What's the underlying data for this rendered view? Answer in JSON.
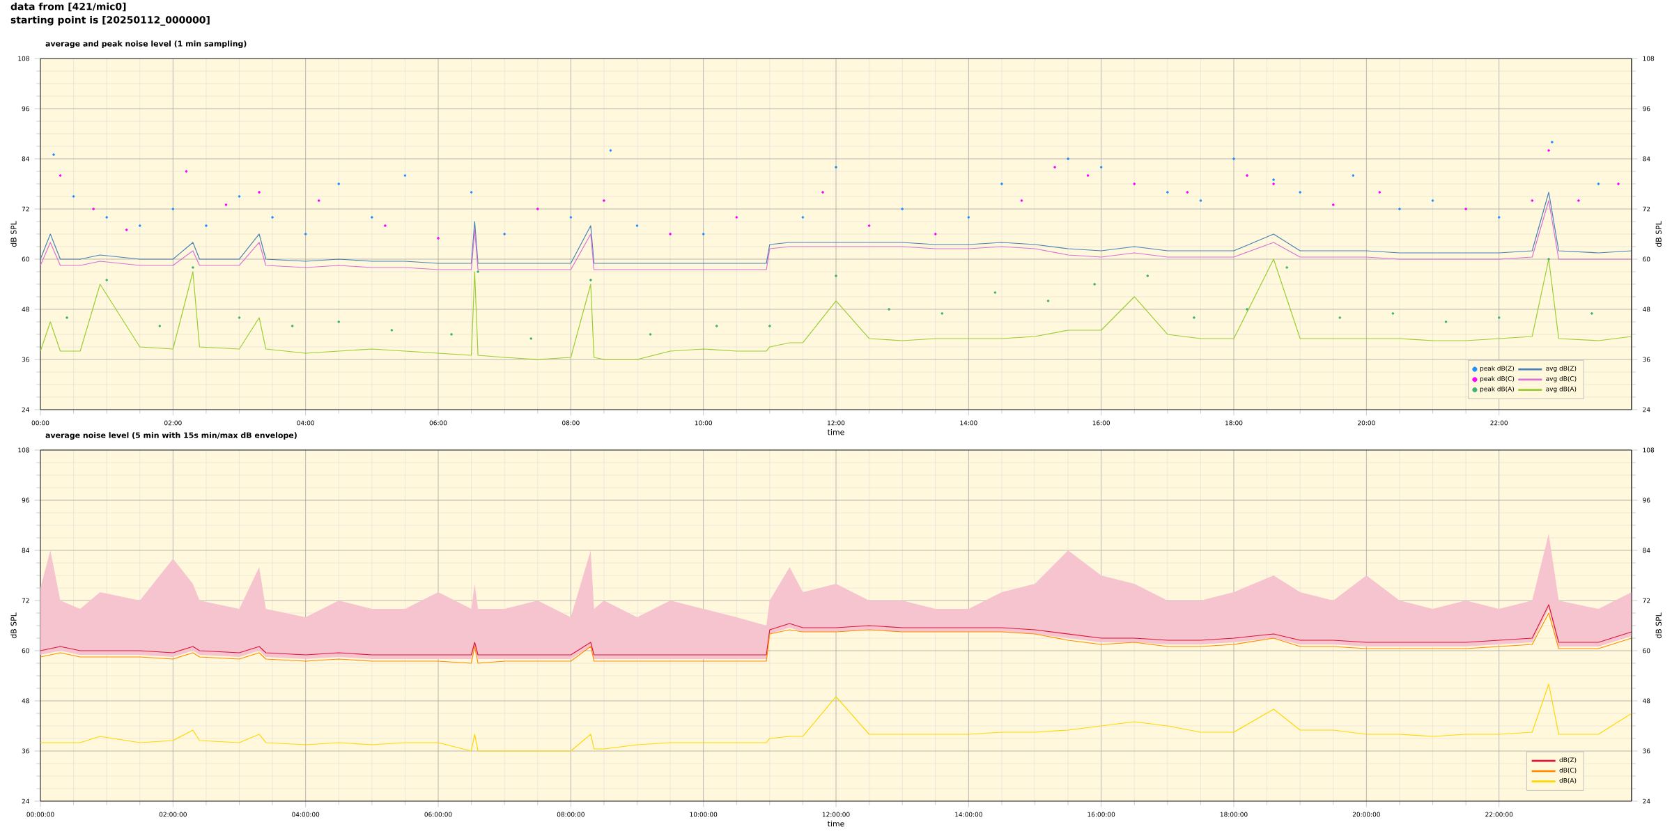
{
  "chart_data": [
    {
      "type": "line",
      "title": "average and peak noise level (1 min sampling)",
      "annotations": [
        "data from [421/mic0]",
        "starting point is [20250112_000000]"
      ],
      "xlabel": "time",
      "ylabel": "dB SPL",
      "y2label": "dB SPL",
      "xlim": [
        0,
        24
      ],
      "xticks": [
        {
          "value": 0,
          "label": "00:00"
        },
        {
          "value": 2,
          "label": "02:00"
        },
        {
          "value": 4,
          "label": "04:00"
        },
        {
          "value": 6,
          "label": "06:00"
        },
        {
          "value": 8,
          "label": "08:00"
        },
        {
          "value": 10,
          "label": "10:00"
        },
        {
          "value": 12,
          "label": "12:00"
        },
        {
          "value": 14,
          "label": "14:00"
        },
        {
          "value": 16,
          "label": "16:00"
        },
        {
          "value": 18,
          "label": "18:00"
        },
        {
          "value": 20,
          "label": "20:00"
        },
        {
          "value": 22,
          "label": "22:00"
        }
      ],
      "ylim": [
        24,
        108
      ],
      "yticks": [
        24,
        36,
        48,
        60,
        72,
        84,
        96,
        108
      ],
      "y2lim": [
        24,
        108
      ],
      "y2ticks": [
        24,
        36,
        48,
        60,
        72,
        84,
        96,
        108
      ],
      "grid": true,
      "legend": "bottom right",
      "x": [
        0,
        0.15,
        0.3,
        0.6,
        0.9,
        1.5,
        2.0,
        2.3,
        2.4,
        3.0,
        3.3,
        3.4,
        4.0,
        4.5,
        5.0,
        5.5,
        6.0,
        6.5,
        6.55,
        6.6,
        7.0,
        7.5,
        8.0,
        8.3,
        8.35,
        8.5,
        9.0,
        9.5,
        10.0,
        10.5,
        10.95,
        11.0,
        11.3,
        11.5,
        12.0,
        12.5,
        13.0,
        13.5,
        14.0,
        14.5,
        15.0,
        15.5,
        16.0,
        16.5,
        17.0,
        17.5,
        18.0,
        18.6,
        19.0,
        19.5,
        20.0,
        20.5,
        21.0,
        21.5,
        22.0,
        22.5,
        22.75,
        22.9,
        23.5,
        24
      ],
      "series": [
        {
          "name": "peak dB(Z)",
          "type": "scatter",
          "color": "#1e90ff",
          "x": [
            0.2,
            0.5,
            1,
            1.5,
            2,
            2.5,
            3,
            3.5,
            4,
            4.5,
            5,
            5.5,
            6.5,
            7,
            8,
            8.6,
            9,
            10,
            11.5,
            12,
            13,
            14,
            14.5,
            15.5,
            16,
            17,
            17.5,
            18,
            18.6,
            19,
            19.8,
            20.5,
            21,
            22,
            22.8,
            23.5
          ],
          "values": [
            85,
            75,
            70,
            68,
            72,
            68,
            75,
            70,
            66,
            78,
            70,
            80,
            76,
            66,
            70,
            86,
            68,
            66,
            70,
            82,
            72,
            70,
            78,
            84,
            82,
            76,
            74,
            84,
            79,
            76,
            80,
            72,
            74,
            70,
            88,
            78
          ]
        },
        {
          "name": "peak dB(C)",
          "type": "scatter",
          "color": "#ff00ff",
          "x": [
            0.3,
            0.8,
            1.3,
            2.2,
            2.8,
            3.3,
            4.2,
            5.2,
            6,
            7.5,
            8.5,
            9.5,
            10.5,
            11.8,
            12.5,
            13.5,
            14.8,
            15.3,
            15.8,
            16.5,
            17.3,
            18.2,
            18.6,
            19.5,
            20.2,
            21.5,
            22.5,
            22.75,
            23.2,
            23.8
          ],
          "values": [
            80,
            72,
            67,
            81,
            73,
            76,
            74,
            68,
            65,
            72,
            74,
            66,
            70,
            76,
            68,
            66,
            74,
            82,
            80,
            78,
            76,
            80,
            78,
            73,
            76,
            72,
            74,
            86,
            74,
            78
          ]
        },
        {
          "name": "peak dB(A)",
          "type": "scatter",
          "color": "#3cb371",
          "x": [
            0.4,
            1,
            1.8,
            2.3,
            3,
            3.8,
            4.5,
            5.3,
            6.2,
            6.6,
            7.4,
            8.3,
            9.2,
            10.2,
            11,
            12,
            12.8,
            13.6,
            14.4,
            15.2,
            15.9,
            16.7,
            17.4,
            18.2,
            18.8,
            19.6,
            20.4,
            21.2,
            22,
            22.75,
            23.4
          ],
          "values": [
            46,
            55,
            44,
            58,
            46,
            44,
            45,
            43,
            42,
            57,
            41,
            55,
            42,
            44,
            44,
            56,
            48,
            47,
            52,
            50,
            54,
            56,
            46,
            48,
            58,
            46,
            47,
            45,
            46,
            60,
            47
          ]
        },
        {
          "name": "avg dB(Z)",
          "color": "#4682b4",
          "values": [
            60,
            66,
            60,
            60,
            61,
            60,
            60,
            64,
            60,
            60,
            66,
            60,
            59.5,
            60,
            59.5,
            59.5,
            59,
            59,
            69,
            59,
            59,
            59,
            59,
            68,
            59,
            59,
            59,
            59,
            59,
            59,
            59,
            63.5,
            64,
            64,
            64,
            64,
            64,
            63.5,
            63.5,
            64,
            63.5,
            62.5,
            62,
            63,
            62,
            62,
            62,
            66,
            62,
            62,
            62,
            61.5,
            61.5,
            61.5,
            61.5,
            62,
            76,
            62,
            61.5,
            62
          ]
        },
        {
          "name": "avg dB(C)",
          "color": "#da70d6",
          "values": [
            58.5,
            64,
            58.5,
            58.5,
            59.5,
            58.5,
            58.5,
            62,
            58.5,
            58.5,
            64,
            58.5,
            58,
            58.5,
            58,
            58,
            57.5,
            57.5,
            67,
            57.5,
            57.5,
            57.5,
            57.5,
            66,
            57.5,
            57.5,
            57.5,
            57.5,
            57.5,
            57.5,
            57.5,
            62.5,
            63,
            63,
            63,
            63,
            63,
            62.5,
            62.5,
            63,
            62.5,
            61,
            60.5,
            61.5,
            60.5,
            60.5,
            60.5,
            64,
            60.5,
            60.5,
            60.5,
            60,
            60,
            60,
            60,
            60.5,
            74,
            60,
            60,
            60
          ]
        },
        {
          "name": "avg dB(A)",
          "color": "#9acd32",
          "values": [
            38,
            45,
            38,
            38,
            54,
            39,
            38.5,
            57,
            39,
            38.5,
            46,
            38.5,
            37.5,
            38,
            38.5,
            38,
            37.5,
            37,
            57,
            37,
            36.5,
            36,
            36.5,
            54,
            36.5,
            36,
            36,
            38,
            38.5,
            38,
            38,
            39,
            40,
            40,
            50,
            41,
            40.5,
            41,
            41,
            41,
            41.5,
            43,
            43,
            51,
            42,
            41,
            41,
            60,
            41,
            41,
            41,
            41,
            40.5,
            40.5,
            41,
            41.5,
            60,
            41,
            40.5,
            41.5
          ]
        }
      ]
    },
    {
      "type": "line",
      "title": "average noise level (5 min with 15s min/max dB envelope)",
      "xlabel": "time",
      "ylabel": "dB SPL",
      "y2label": "dB SPL",
      "xlim": [
        0,
        24
      ],
      "xticks": [
        {
          "value": 0,
          "label": "00:00:00"
        },
        {
          "value": 2,
          "label": "02:00:00"
        },
        {
          "value": 4,
          "label": "04:00:00"
        },
        {
          "value": 6,
          "label": "06:00:00"
        },
        {
          "value": 8,
          "label": "08:00:00"
        },
        {
          "value": 10,
          "label": "10:00:00"
        },
        {
          "value": 12,
          "label": "12:00:00"
        },
        {
          "value": 14,
          "label": "14:00:00"
        },
        {
          "value": 16,
          "label": "16:00:00"
        },
        {
          "value": 18,
          "label": "18:00:00"
        },
        {
          "value": 20,
          "label": "20:00:00"
        },
        {
          "value": 22,
          "label": "22:00:00"
        }
      ],
      "ylim": [
        24,
        108
      ],
      "yticks": [
        24,
        36,
        48,
        60,
        72,
        84,
        96,
        108
      ],
      "y2lim": [
        24,
        108
      ],
      "y2ticks": [
        24,
        36,
        48,
        60,
        72,
        84,
        96,
        108
      ],
      "grid": true,
      "legend": "bottom right",
      "x": [
        0,
        0.15,
        0.3,
        0.6,
        0.9,
        1.5,
        2.0,
        2.3,
        2.4,
        3.0,
        3.3,
        3.4,
        4.0,
        4.5,
        5.0,
        5.5,
        6.0,
        6.5,
        6.55,
        6.6,
        7.0,
        7.5,
        8.0,
        8.3,
        8.35,
        8.5,
        9.0,
        9.5,
        10.0,
        10.5,
        10.95,
        11.0,
        11.3,
        11.5,
        12.0,
        12.5,
        13.0,
        13.5,
        14.0,
        14.5,
        15.0,
        15.5,
        16.0,
        16.5,
        17.0,
        17.5,
        18.0,
        18.6,
        19.0,
        19.5,
        20.0,
        20.5,
        21.0,
        21.5,
        22.0,
        22.5,
        22.75,
        22.9,
        23.5,
        24
      ],
      "series": [
        {
          "name": "dB(Z)",
          "color": "#dc143c",
          "values": [
            60,
            60.5,
            61,
            60,
            60,
            60,
            59.5,
            61,
            60,
            59.5,
            61,
            59.5,
            59,
            59.5,
            59,
            59,
            59,
            59,
            62,
            59,
            59,
            59,
            59,
            62,
            59,
            59,
            59,
            59,
            59,
            59,
            59,
            65,
            66.5,
            65.5,
            65.5,
            66,
            65.5,
            65.5,
            65.5,
            65.5,
            65,
            64,
            63,
            63,
            62.5,
            62.5,
            63,
            64,
            62.5,
            62.5,
            62,
            62,
            62,
            62,
            62.5,
            63,
            71,
            62,
            62,
            64.5
          ],
          "lower": [
            59,
            59.5,
            60,
            59,
            59,
            59,
            58.5,
            60,
            59,
            58.5,
            60,
            58.5,
            58,
            58.5,
            58,
            58,
            58,
            58,
            61,
            58,
            58,
            58,
            58,
            61,
            58,
            58,
            58,
            58,
            58,
            58,
            58,
            64,
            65.5,
            64.5,
            64.5,
            65,
            64.5,
            64.5,
            64.5,
            64.5,
            64,
            63,
            62,
            62,
            61.5,
            61.5,
            62,
            63,
            61.5,
            61.5,
            61,
            61,
            61,
            61,
            61.5,
            62,
            70,
            61,
            61,
            63.5
          ],
          "upper": [
            75,
            84,
            72,
            70,
            74,
            72,
            82,
            76,
            72,
            70,
            80,
            70,
            68,
            72,
            70,
            70,
            74,
            70,
            76,
            70,
            70,
            72,
            68,
            84,
            70,
            72,
            68,
            72,
            70,
            68,
            66,
            72,
            80,
            74,
            76,
            72,
            72,
            70,
            70,
            74,
            76,
            84,
            78,
            76,
            72,
            72,
            74,
            78,
            74,
            72,
            78,
            72,
            70,
            72,
            70,
            72,
            88,
            72,
            70,
            74
          ]
        },
        {
          "name": "dB(C)",
          "color": "#ff8c00",
          "values": [
            58.5,
            59,
            59.5,
            58.5,
            58.5,
            58.5,
            58,
            59.5,
            58.5,
            58,
            59.5,
            58,
            57.5,
            58,
            57.5,
            57.5,
            57.5,
            57,
            61,
            57,
            57.5,
            57.5,
            57.5,
            61,
            57.5,
            57.5,
            57.5,
            57.5,
            57.5,
            57.5,
            57.5,
            64,
            65,
            64.5,
            64.5,
            65,
            64.5,
            64.5,
            64.5,
            64.5,
            64,
            62.5,
            61.5,
            62,
            61,
            61,
            61.5,
            63,
            61,
            61,
            60.5,
            60.5,
            60.5,
            60.5,
            61,
            61.5,
            69,
            60.5,
            60.5,
            63
          ]
        },
        {
          "name": "dB(A)",
          "color": "#ffd700",
          "values": [
            38,
            38,
            38,
            38,
            39.5,
            38,
            38.5,
            41,
            38.5,
            38,
            40,
            38,
            37.5,
            38,
            37.5,
            38,
            38,
            36,
            40,
            36,
            36,
            36,
            36,
            40,
            36.5,
            36.5,
            37.5,
            38,
            38,
            38,
            38,
            39,
            39.5,
            39.5,
            49,
            40,
            40,
            40,
            40,
            40.5,
            40.5,
            41,
            42,
            43,
            42,
            40.5,
            40.5,
            46,
            41,
            41,
            40,
            40,
            39.5,
            40,
            40,
            40.5,
            52,
            40,
            40,
            45
          ]
        }
      ]
    }
  ]
}
